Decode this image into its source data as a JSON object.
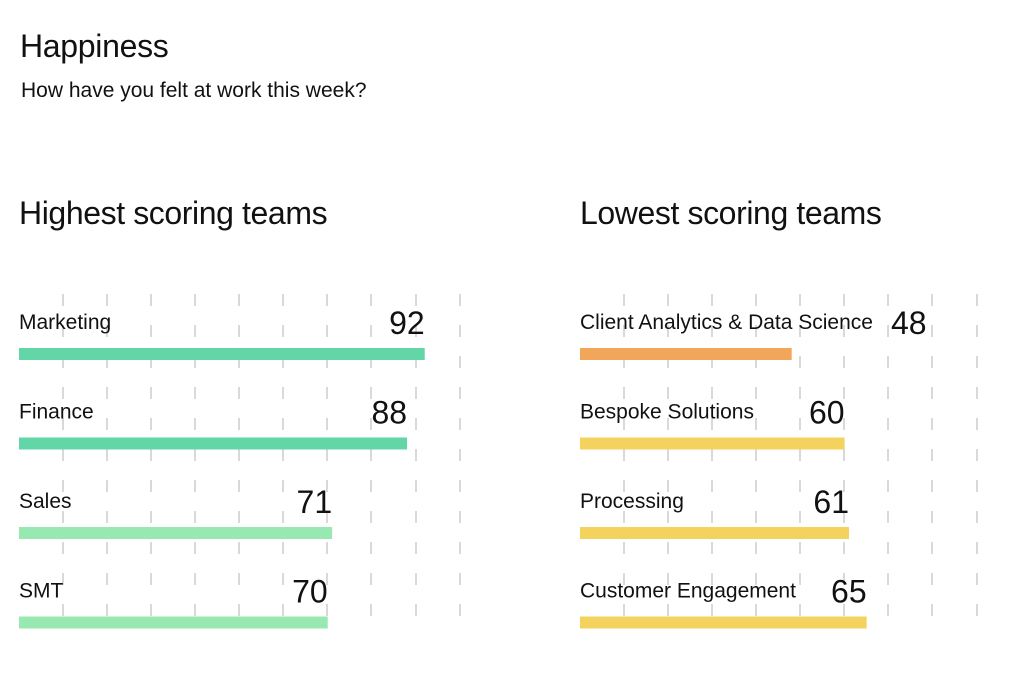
{
  "header": {
    "title": "Happiness",
    "subtitle": "How have you felt at work this week?"
  },
  "colors": {
    "high_strong": "#63d6a8",
    "high_light": "#98e9b1",
    "low_orange": "#f2a65a",
    "low_yellow": "#f3d35e",
    "gridline": "#d9d9d9",
    "text": "#111111"
  },
  "chart_data": [
    {
      "type": "bar",
      "orientation": "horizontal",
      "title": "Highest scoring teams",
      "categories": [
        "Marketing",
        "Finance",
        "Sales",
        "SMT"
      ],
      "values": [
        92,
        88,
        71,
        70
      ],
      "bar_colors": [
        "#63d6a8",
        "#63d6a8",
        "#98e9b1",
        "#98e9b1"
      ],
      "xlim": [
        0,
        100
      ],
      "grid": "vertical dashed",
      "legend": "none"
    },
    {
      "type": "bar",
      "orientation": "horizontal",
      "title": "Lowest scoring teams",
      "categories": [
        "Client Analytics & Data Science",
        "Bespoke Solutions",
        "Processing",
        "Customer Engagement"
      ],
      "values": [
        48,
        60,
        61,
        65
      ],
      "bar_colors": [
        "#f2a65a",
        "#f3d35e",
        "#f3d35e",
        "#f3d35e"
      ],
      "xlim": [
        0,
        100
      ],
      "grid": "vertical dashed",
      "legend": "none"
    }
  ]
}
